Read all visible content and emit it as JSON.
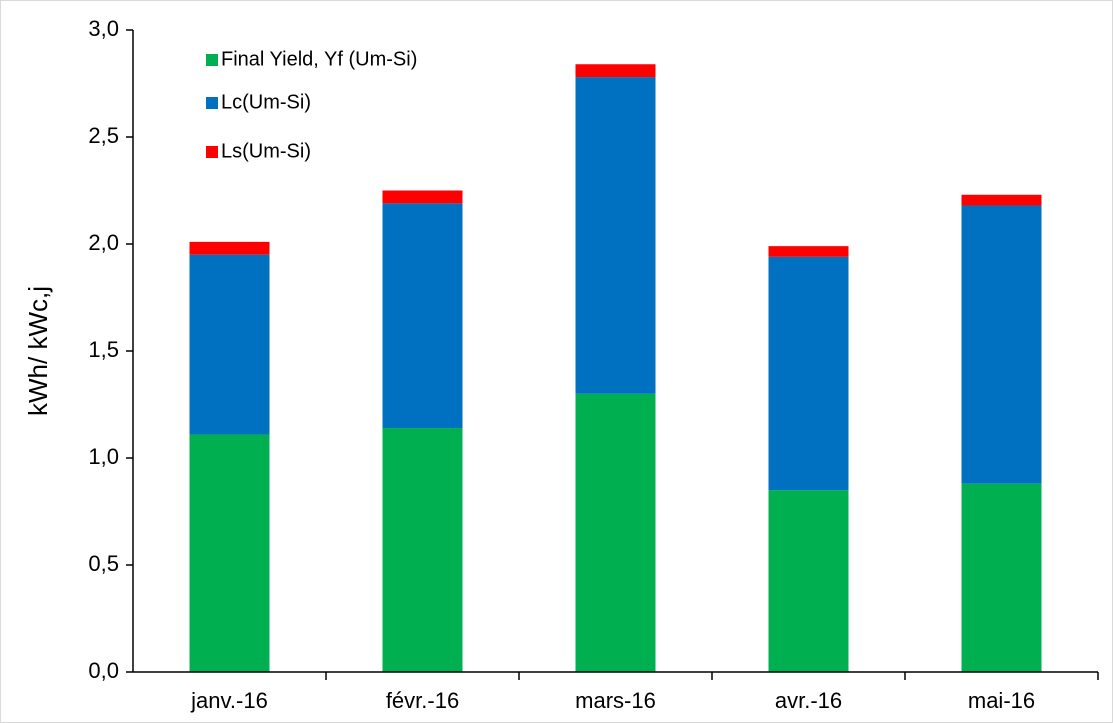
{
  "chart_data": {
    "type": "stacked_bar",
    "y_label": "kWh/ kWc,j",
    "categories": [
      "janv.-16",
      "févr.-16",
      "mars-16",
      "avr.-16",
      "mai-16"
    ],
    "series": [
      {
        "name": "Final Yield, Yf (Um-Si)",
        "color": "#00b050",
        "values": [
          1.11,
          1.14,
          1.3,
          0.85,
          0.88
        ]
      },
      {
        "name": "Lc(Um-Si)",
        "color": "#0070c0",
        "values": [
          0.84,
          1.05,
          1.48,
          1.09,
          1.3
        ]
      },
      {
        "name": "Ls(Um-Si)",
        "color": "#ff0000",
        "values": [
          0.06,
          0.06,
          0.06,
          0.05,
          0.05
        ]
      }
    ],
    "ylim": [
      0,
      3
    ],
    "yticks": [
      {
        "value": 0,
        "label": "0,0"
      },
      {
        "value": 0.5,
        "label": "0,5"
      },
      {
        "value": 1,
        "label": "1,0"
      },
      {
        "value": 1.5,
        "label": "1,5"
      },
      {
        "value": 2,
        "label": "2,0"
      },
      {
        "value": 2.5,
        "label": "2,5"
      },
      {
        "value": 3,
        "label": "3,0"
      }
    ],
    "grid": false,
    "legend": "top-left"
  }
}
